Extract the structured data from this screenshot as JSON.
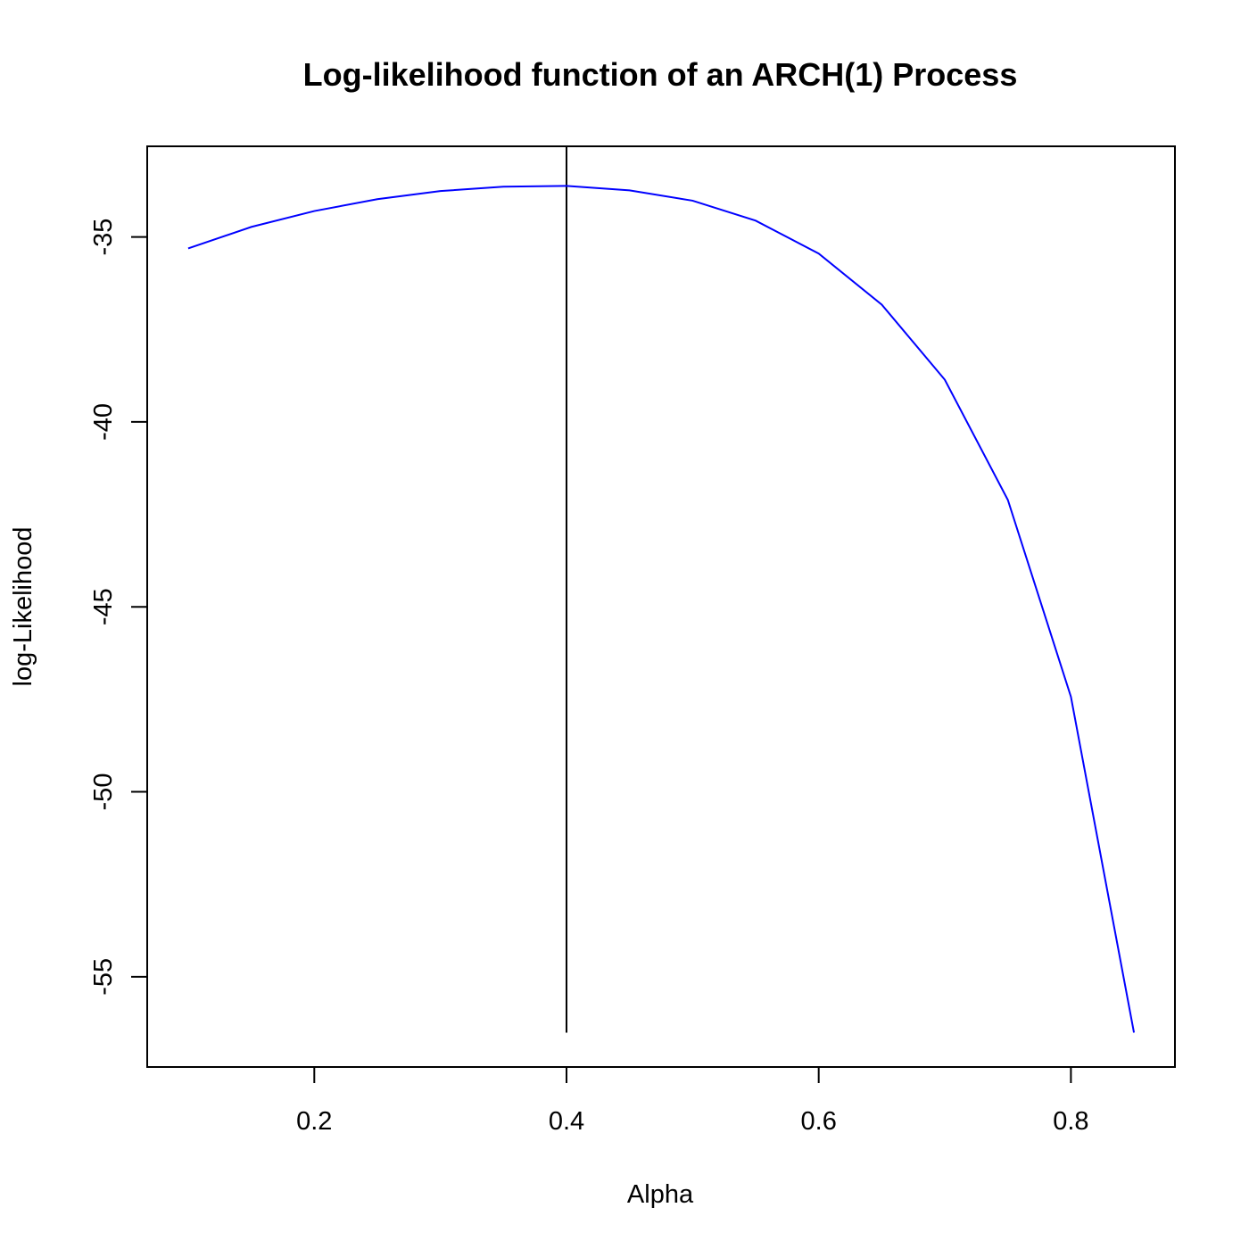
{
  "chart_data": {
    "type": "line",
    "title": "Log-likelihood function of an ARCH(1) Process",
    "xlabel": "Alpha",
    "ylabel": "log-Likelihood",
    "xlim": [
      0.0675,
      0.8825
    ],
    "ylim": [
      -57.44,
      -32.55
    ],
    "x_ticks": [
      0.2,
      0.4,
      0.6,
      0.8
    ],
    "x_tick_labels": [
      "0.2",
      "0.4",
      "0.6",
      "0.8"
    ],
    "y_ticks": [
      -35,
      -40,
      -45,
      -50,
      -55
    ],
    "y_tick_labels": [
      "-35",
      "-40",
      "-45",
      "-50",
      "-55"
    ],
    "grid": false,
    "series": [
      {
        "color": "#0000ff",
        "x": [
          0.1,
          0.15,
          0.2,
          0.25,
          0.3,
          0.35,
          0.4,
          0.45,
          0.5,
          0.55,
          0.6,
          0.65,
          0.7,
          0.75,
          0.8,
          0.85
        ],
        "y": [
          -35.31,
          -34.73,
          -34.3,
          -33.98,
          -33.76,
          -33.64,
          -33.62,
          -33.74,
          -34.02,
          -34.56,
          -35.45,
          -36.83,
          -38.86,
          -42.11,
          -47.43,
          -56.51
        ]
      }
    ],
    "vline": {
      "x": 0.4,
      "y_from": -56.51,
      "y_to": -32.55,
      "color": "#000000"
    }
  }
}
